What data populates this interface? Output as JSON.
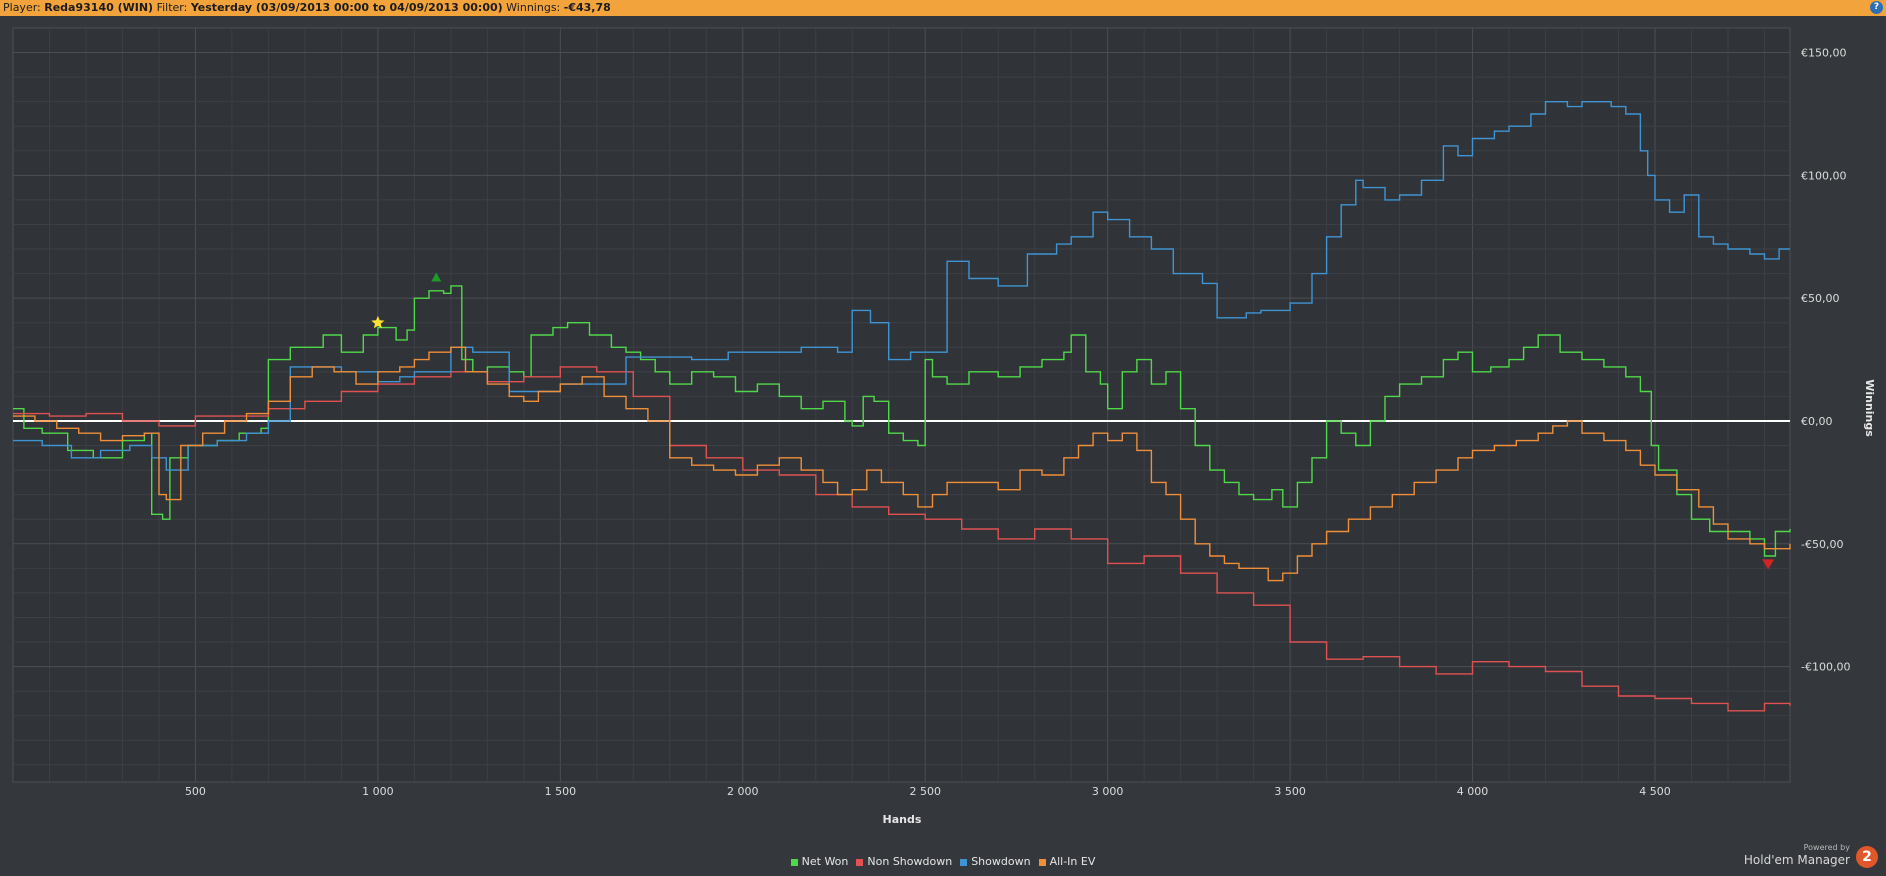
{
  "header": {
    "player_label": "Player:",
    "player_value": "Reda93140 (WIN)",
    "filter_label": "Filter:",
    "filter_value": "Yesterday (03/09/2013 00:00 to 04/09/2013 00:00)",
    "winnings_label": "Winnings:",
    "winnings_value": "-€43,78",
    "help_icon": "?"
  },
  "branding": {
    "small": "Powered by",
    "name": "Hold'em Manager",
    "badge": "2"
  },
  "chart_data": {
    "type": "line",
    "xlabel": "Hands",
    "ylabel": "Winnings",
    "xlim": [
      0,
      4870
    ],
    "ylim": [
      -147,
      160
    ],
    "x_ticks": [
      500,
      1000,
      1500,
      2000,
      2500,
      3000,
      3500,
      4000,
      4500
    ],
    "x_tick_labels": [
      "500",
      "1 000",
      "1 500",
      "2 000",
      "2 500",
      "3 000",
      "3 500",
      "4 000",
      "4 500"
    ],
    "y_ticks": [
      150,
      100,
      50,
      0,
      -50,
      -100
    ],
    "y_tick_labels": [
      "€150,00",
      "€100,00",
      "€50,00",
      "€0,00",
      "-€50,00",
      "-€100,00"
    ],
    "grid": true,
    "legend_position": "bottom",
    "series": [
      {
        "name": "Net Won",
        "color": "#4fd94a",
        "x": [
          0,
          30,
          80,
          150,
          220,
          300,
          360,
          380,
          410,
          430,
          480,
          560,
          620,
          680,
          700,
          760,
          850,
          900,
          960,
          1000,
          1050,
          1080,
          1100,
          1140,
          1180,
          1200,
          1230,
          1260,
          1300,
          1360,
          1400,
          1420,
          1480,
          1520,
          1580,
          1640,
          1680,
          1720,
          1760,
          1800,
          1860,
          1920,
          1980,
          2040,
          2100,
          2160,
          2220,
          2280,
          2300,
          2330,
          2360,
          2400,
          2440,
          2480,
          2500,
          2520,
          2560,
          2620,
          2700,
          2760,
          2820,
          2880,
          2900,
          2940,
          2980,
          3000,
          3040,
          3080,
          3120,
          3160,
          3200,
          3240,
          3280,
          3320,
          3360,
          3400,
          3450,
          3480,
          3520,
          3560,
          3600,
          3640,
          3680,
          3720,
          3760,
          3800,
          3860,
          3920,
          3960,
          4000,
          4050,
          4100,
          4140,
          4180,
          4240,
          4300,
          4360,
          4420,
          4460,
          4490,
          4510,
          4560,
          4600,
          4650,
          4700,
          4760,
          4800,
          4830,
          4870
        ],
        "y": [
          5,
          -3,
          -5,
          -12,
          -15,
          -8,
          -5,
          -38,
          -40,
          -15,
          -10,
          -8,
          -5,
          -3,
          25,
          30,
          35,
          28,
          35,
          38,
          33,
          37,
          50,
          53,
          52,
          55,
          25,
          20,
          22,
          20,
          18,
          35,
          38,
          40,
          35,
          30,
          28,
          25,
          20,
          15,
          20,
          18,
          12,
          15,
          10,
          5,
          8,
          0,
          -2,
          10,
          8,
          -5,
          -8,
          -10,
          25,
          18,
          15,
          20,
          18,
          22,
          25,
          28,
          35,
          20,
          15,
          5,
          20,
          25,
          15,
          20,
          5,
          -10,
          -20,
          -25,
          -30,
          -32,
          -28,
          -35,
          -25,
          -15,
          0,
          -5,
          -10,
          0,
          10,
          15,
          18,
          25,
          28,
          20,
          22,
          25,
          30,
          35,
          28,
          25,
          22,
          18,
          12,
          -10,
          -20,
          -30,
          -40,
          -45,
          -45,
          -48,
          -55,
          -45,
          -44
        ]
      },
      {
        "name": "Non Showdown",
        "color": "#e05252",
        "x": [
          0,
          100,
          200,
          300,
          400,
          500,
          600,
          700,
          800,
          900,
          1000,
          1100,
          1200,
          1300,
          1400,
          1500,
          1600,
          1700,
          1800,
          1900,
          2000,
          2100,
          2200,
          2300,
          2400,
          2500,
          2600,
          2700,
          2800,
          2900,
          3000,
          3100,
          3200,
          3300,
          3400,
          3500,
          3600,
          3700,
          3800,
          3900,
          4000,
          4100,
          4200,
          4300,
          4400,
          4500,
          4600,
          4700,
          4800,
          4870
        ],
        "y": [
          3,
          2,
          3,
          0,
          -2,
          2,
          2,
          5,
          8,
          12,
          15,
          18,
          20,
          16,
          18,
          22,
          20,
          10,
          -10,
          -15,
          -20,
          -22,
          -30,
          -35,
          -38,
          -40,
          -44,
          -48,
          -44,
          -48,
          -58,
          -55,
          -62,
          -70,
          -75,
          -90,
          -97,
          -96,
          -100,
          -103,
          -98,
          -100,
          -102,
          -108,
          -112,
          -113,
          -115,
          -118,
          -115,
          -116
        ]
      },
      {
        "name": "Showdown",
        "color": "#3f94d4",
        "x": [
          0,
          80,
          160,
          240,
          320,
          380,
          420,
          480,
          560,
          640,
          700,
          760,
          900,
          1000,
          1060,
          1100,
          1200,
          1260,
          1360,
          1500,
          1580,
          1680,
          1760,
          1860,
          1960,
          2060,
          2160,
          2260,
          2300,
          2350,
          2400,
          2460,
          2500,
          2560,
          2620,
          2700,
          2780,
          2860,
          2900,
          2960,
          3000,
          3060,
          3120,
          3180,
          3260,
          3300,
          3380,
          3420,
          3500,
          3560,
          3600,
          3640,
          3680,
          3700,
          3760,
          3800,
          3860,
          3920,
          3960,
          4000,
          4060,
          4100,
          4160,
          4200,
          4260,
          4300,
          4380,
          4420,
          4460,
          4480,
          4500,
          4540,
          4580,
          4620,
          4660,
          4700,
          4760,
          4800,
          4840,
          4870
        ],
        "y": [
          -8,
          -10,
          -15,
          -12,
          -10,
          -15,
          -20,
          -10,
          -8,
          -5,
          0,
          22,
          20,
          16,
          18,
          20,
          30,
          28,
          12,
          15,
          15,
          26,
          26,
          25,
          28,
          28,
          30,
          28,
          45,
          40,
          25,
          28,
          28,
          65,
          58,
          55,
          68,
          72,
          75,
          85,
          82,
          75,
          70,
          60,
          56,
          42,
          44,
          45,
          48,
          60,
          75,
          88,
          98,
          95,
          90,
          92,
          98,
          112,
          108,
          115,
          118,
          120,
          125,
          130,
          128,
          130,
          128,
          125,
          110,
          100,
          90,
          85,
          92,
          75,
          72,
          70,
          68,
          66,
          70,
          70
        ]
      },
      {
        "name": "All-In EV",
        "color": "#ef8f3a",
        "x": [
          0,
          60,
          120,
          180,
          240,
          300,
          360,
          400,
          420,
          460,
          520,
          580,
          640,
          700,
          760,
          820,
          880,
          940,
          1000,
          1060,
          1100,
          1140,
          1200,
          1240,
          1300,
          1360,
          1400,
          1440,
          1500,
          1560,
          1620,
          1680,
          1740,
          1800,
          1860,
          1920,
          1980,
          2040,
          2100,
          2160,
          2220,
          2260,
          2300,
          2340,
          2380,
          2440,
          2480,
          2520,
          2560,
          2620,
          2700,
          2760,
          2820,
          2880,
          2920,
          2960,
          3000,
          3040,
          3080,
          3120,
          3160,
          3200,
          3240,
          3280,
          3320,
          3360,
          3400,
          3440,
          3480,
          3520,
          3560,
          3600,
          3660,
          3720,
          3780,
          3840,
          3900,
          3960,
          4000,
          4060,
          4120,
          4180,
          4220,
          4260,
          4300,
          4360,
          4420,
          4460,
          4500,
          4560,
          4620,
          4660,
          4700,
          4760,
          4800,
          4840,
          4870
        ],
        "y": [
          2,
          0,
          -3,
          -5,
          -8,
          -6,
          -5,
          -30,
          -32,
          -10,
          -5,
          0,
          3,
          8,
          18,
          22,
          20,
          15,
          20,
          22,
          25,
          28,
          30,
          20,
          15,
          10,
          8,
          12,
          15,
          18,
          10,
          5,
          0,
          -15,
          -18,
          -20,
          -22,
          -18,
          -15,
          -20,
          -25,
          -30,
          -28,
          -20,
          -25,
          -30,
          -35,
          -30,
          -25,
          -25,
          -28,
          -20,
          -22,
          -15,
          -10,
          -5,
          -8,
          -5,
          -12,
          -25,
          -30,
          -40,
          -50,
          -55,
          -58,
          -60,
          -60,
          -65,
          -62,
          -55,
          -50,
          -45,
          -40,
          -35,
          -30,
          -25,
          -20,
          -15,
          -12,
          -10,
          -8,
          -5,
          -2,
          0,
          -5,
          -8,
          -12,
          -18,
          -22,
          -28,
          -35,
          -42,
          -48,
          -50,
          -52,
          -52,
          -50
        ]
      }
    ],
    "markers": [
      {
        "kind": "star",
        "x": 1000,
        "y": 40,
        "color": "#ffe234"
      },
      {
        "kind": "triangle-up",
        "x": 1160,
        "y": 58,
        "color": "#1f9a2a"
      },
      {
        "kind": "triangle-down",
        "x": 4810,
        "y": -58,
        "color": "#d32424"
      }
    ]
  }
}
